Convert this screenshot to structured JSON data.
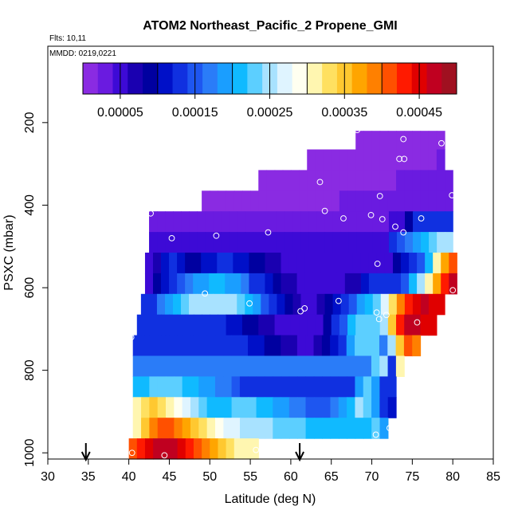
{
  "chart_data": {
    "type": "heatmap",
    "title": "ATOM2 Northeast_Pacific_2 Propene_GMI",
    "flights_note": "Flts: 10,11",
    "mmdd_note": "MMDD: 0219,0221",
    "xlabel": "Latitude (deg N)",
    "ylabel": "PSXC (mbar)",
    "xlim": [
      30,
      85
    ],
    "ylim": [
      1015,
      15
    ],
    "x_ticks": [
      30,
      35,
      40,
      45,
      50,
      55,
      60,
      65,
      70,
      75,
      80,
      85
    ],
    "y_ticks": [
      200,
      400,
      600,
      800,
      1000
    ],
    "colorbar": {
      "range": [
        0,
        0.0005
      ],
      "tick_values": [
        5e-05,
        0.00015,
        0.00025,
        0.00035,
        0.00045
      ],
      "tick_labels": [
        "0.00005",
        "0.00015",
        "0.00025",
        "0.00035",
        "0.00045"
      ],
      "colors": [
        "#8a2be2",
        "#6a1be0",
        "#3d0ad6",
        "#1a00b0",
        "#0000a0",
        "#0010c8",
        "#1030e0",
        "#1e56f0",
        "#2a7cf8",
        "#1a9eff",
        "#10baff",
        "#5ccfff",
        "#a8e2ff",
        "#dff4ff",
        "#fffff0",
        "#fff6b0",
        "#ffe060",
        "#ffc830",
        "#ffa500",
        "#ff8000",
        "#ff5000",
        "#ff1a00",
        "#e00000",
        "#c00020",
        "#a01020"
      ]
    },
    "arrows_lat": [
      34.7,
      61.1
    ],
    "bands": [
      {
        "p_top": 220,
        "p_bot": 265,
        "lat_start": 68,
        "lat_end": 79,
        "values": [
          1e-05,
          1e-05,
          1e-05,
          1e-05,
          1e-05,
          1e-05,
          1e-05,
          1e-05,
          1e-05,
          1e-05,
          1e-05
        ]
      },
      {
        "p_top": 265,
        "p_bot": 315,
        "lat_start": 62,
        "lat_end": 79,
        "values": [
          1e-05,
          1e-05,
          1e-05,
          1e-05,
          1e-05,
          1e-05,
          1e-05,
          1e-05,
          1e-05,
          1e-05,
          1e-05,
          1e-05,
          1e-05,
          1e-05,
          1.5e-05,
          1.5e-05,
          2e-05
        ]
      },
      {
        "p_top": 315,
        "p_bot": 365,
        "lat_start": 56,
        "lat_end": 80,
        "values": [
          1e-05,
          1e-05,
          1e-05,
          1e-05,
          1e-05,
          1e-05,
          1e-05,
          1e-05,
          1e-05,
          1e-05,
          1e-05,
          1e-05,
          1e-05,
          1e-05,
          1e-05,
          1.5e-05,
          1.5e-05,
          2e-05,
          2e-05,
          2e-05,
          2.5e-05,
          2.5e-05,
          3e-05,
          3e-05
        ]
      },
      {
        "p_top": 365,
        "p_bot": 415,
        "lat_start": 49,
        "lat_end": 80,
        "values": [
          1e-05,
          1e-05,
          1e-05,
          1e-05,
          1e-05,
          1e-05,
          1e-05,
          1e-05,
          1e-05,
          1e-05,
          1e-05,
          1e-05,
          1e-05,
          1e-05,
          1.5e-05,
          1.5e-05,
          1.5e-05,
          2e-05,
          2e-05,
          2e-05,
          2e-05,
          2.5e-05,
          2.5e-05,
          3e-05,
          3e-05,
          3e-05,
          3e-05,
          2.5e-05,
          2e-05,
          3e-05,
          3e-05
        ]
      },
      {
        "p_top": 415,
        "p_bot": 465,
        "lat_start": 42.5,
        "lat_end": 80,
        "values": [
          2e-05,
          2e-05,
          2e-05,
          2e-05,
          2e-05,
          2e-05,
          2e-05,
          2e-05,
          2e-05,
          2e-05,
          2.5e-05,
          2.5e-05,
          2.5e-05,
          2.5e-05,
          2.5e-05,
          2.5e-05,
          2.5e-05,
          3e-05,
          3e-05,
          3e-05,
          3e-05,
          3e-05,
          3e-05,
          3e-05,
          3e-05,
          3e-05,
          3e-05,
          3e-05,
          3e-05,
          3e-05,
          4e-05,
          5e-05,
          8e-05,
          0.00012,
          0.00012,
          0.00012,
          0.00012,
          0.00012
        ]
      },
      {
        "p_top": 465,
        "p_bot": 515,
        "lat_start": 42.5,
        "lat_end": 80,
        "values": [
          4e-05,
          4e-05,
          4e-05,
          4e-05,
          4e-05,
          4e-05,
          4e-05,
          4e-05,
          4e-05,
          4e-05,
          4e-05,
          4e-05,
          4e-05,
          4e-05,
          4e-05,
          4e-05,
          4e-05,
          4e-05,
          4e-05,
          4e-05,
          4e-05,
          4e-05,
          4e-05,
          4e-05,
          4e-05,
          4e-05,
          4e-05,
          4e-05,
          4e-05,
          4e-05,
          0.00012,
          0.00015,
          0.00016,
          0.00018,
          0.0002,
          0.00022,
          0.00024,
          0.00026
        ]
      },
      {
        "p_top": 515,
        "p_bot": 565,
        "lat_start": 42,
        "lat_end": 80.5,
        "values": [
          5e-05,
          7e-05,
          0.0001,
          0.00012,
          0.0001,
          8e-05,
          9e-05,
          0.0001,
          0.00011,
          0.00012,
          0.00012,
          0.00011,
          0.0001,
          9e-05,
          8e-05,
          7e-05,
          6e-05,
          5e-05,
          4e-05,
          4e-05,
          4e-05,
          4e-05,
          4e-05,
          4e-05,
          4e-05,
          4e-05,
          4e-05,
          4e-05,
          4e-05,
          4e-05,
          5e-05,
          8e-05,
          0.0001,
          0.00012,
          0.00015,
          0.0002,
          0.0003,
          0.00036,
          0.0004
        ]
      },
      {
        "p_top": 565,
        "p_bot": 615,
        "lat_start": 42,
        "lat_end": 80.5,
        "values": [
          5e-05,
          8e-05,
          0.00011,
          0.00013,
          0.00015,
          0.00016,
          0.00018,
          0.00019,
          0.0002,
          0.0002,
          0.00019,
          0.00018,
          0.00016,
          0.00014,
          0.00012,
          0.0001,
          8e-05,
          7e-05,
          6e-05,
          5e-05,
          5e-05,
          4e-05,
          4e-05,
          4e-05,
          4e-05,
          6e-05,
          7e-05,
          0.0001,
          0.00012,
          0.00012,
          0.00012,
          0.00012,
          0.00015,
          0.0002,
          0.00025,
          0.0003,
          0.00036,
          0.00042,
          0.00046
        ]
      },
      {
        "p_top": 615,
        "p_bot": 665,
        "lat_start": 41.5,
        "lat_end": 79,
        "values": [
          0.00012,
          0.00014,
          0.00016,
          0.00018,
          0.0002,
          0.00022,
          0.00024,
          0.00025,
          0.00026,
          0.00026,
          0.00025,
          0.00024,
          0.00022,
          0.0002,
          0.00018,
          0.00015,
          0.00012,
          0.0001,
          8e-05,
          6e-05,
          5e-05,
          5e-05,
          6e-05,
          8e-05,
          0.0001,
          0.00013,
          0.00015,
          0.00018,
          0.0002,
          0.00022,
          0.00028,
          0.00033,
          0.00038,
          0.00042,
          0.00045,
          0.00046,
          0.00045,
          0.00044
        ]
      },
      {
        "p_top": 665,
        "p_bot": 715,
        "lat_start": 41,
        "lat_end": 78,
        "values": [
          0.00012,
          0.00012,
          0.00012,
          0.00012,
          0.00012,
          0.00012,
          0.00012,
          0.00012,
          0.00012,
          0.00012,
          0.00012,
          0.00011,
          0.0001,
          9e-05,
          8e-05,
          7e-05,
          6e-05,
          5e-05,
          4e-05,
          4e-05,
          4e-05,
          4e-05,
          5e-05,
          8e-05,
          0.00012,
          0.00015,
          0.0002,
          0.00023,
          0.00023,
          0.00022,
          0.00026,
          0.00035,
          0.00042,
          0.00046,
          0.00046,
          0.00044,
          0.00045
        ]
      },
      {
        "p_top": 715,
        "p_bot": 765,
        "lat_start": 40.5,
        "lat_end": 76,
        "values": [
          0.00013,
          0.00013,
          0.00013,
          0.00013,
          0.00013,
          0.00013,
          0.00013,
          0.00013,
          0.00013,
          0.00013,
          0.00013,
          0.00013,
          0.00013,
          0.00012,
          0.00011,
          0.0001,
          9e-05,
          8e-05,
          7e-05,
          6e-05,
          5e-05,
          4e-05,
          6e-05,
          8e-05,
          0.00011,
          0.00014,
          0.00018,
          0.00022,
          0.00023,
          0.00023,
          0.00016,
          0.00025,
          0.00035,
          0.0004,
          0.00038
        ]
      },
      {
        "p_top": 765,
        "p_bot": 815,
        "lat_start": 40.5,
        "lat_end": 74,
        "values": [
          0.00016,
          0.00016,
          0.00016,
          0.00016,
          0.00016,
          0.00016,
          0.00016,
          0.00016,
          0.00016,
          0.00016,
          0.00016,
          0.00016,
          0.00016,
          0.00016,
          0.00016,
          0.00016,
          0.00016,
          0.00016,
          0.00016,
          0.00016,
          0.00016,
          0.00016,
          0.00016,
          0.00016,
          0.00016,
          0.00016,
          0.00016,
          0.00016,
          0.00016,
          0.00022,
          0.00025,
          0.00012,
          0.0003
        ]
      },
      {
        "p_top": 815,
        "p_bot": 865,
        "lat_start": 40.5,
        "lat_end": 73,
        "values": [
          0.0002,
          0.00021,
          0.00022,
          0.00023,
          0.00023,
          0.00022,
          0.00021,
          0.0002,
          0.00019,
          0.00018,
          0.00017,
          0.00016,
          0.00015,
          0.00014,
          0.00013,
          0.00012,
          0.00012,
          0.00012,
          0.00012,
          0.00012,
          0.00012,
          0.00012,
          0.00012,
          0.00012,
          0.00012,
          0.00012,
          0.00013,
          0.00018,
          0.00023,
          0.00018,
          0.00012,
          0.00012
        ]
      },
      {
        "p_top": 865,
        "p_bot": 915,
        "lat_start": 40.5,
        "lat_end": 73,
        "values": [
          0.00031,
          0.00032,
          0.00034,
          0.00033,
          0.00031,
          0.00029,
          0.00027,
          0.00025,
          0.00023,
          0.00021,
          0.0002,
          0.00021,
          0.00022,
          0.00023,
          0.00022,
          0.00021,
          0.0002,
          0.00019,
          0.00018,
          0.00017,
          0.00016,
          0.00015,
          0.00015,
          0.00015,
          0.00016,
          0.00018,
          0.00021,
          0.00025,
          0.00023,
          0.00018,
          0.00012,
          0.0001
        ]
      },
      {
        "p_top": 915,
        "p_bot": 965,
        "lat_start": 40.5,
        "lat_end": 72,
        "values": [
          0.0003,
          0.00034,
          0.00038,
          0.0004,
          0.0004,
          0.00038,
          0.00036,
          0.00034,
          0.00032,
          0.0003,
          0.00029,
          0.00028,
          0.00027,
          0.00026,
          0.00026,
          0.00025,
          0.00024,
          0.00023,
          0.00022,
          0.00022,
          0.00022,
          0.00021,
          0.00021,
          0.00021,
          0.0002,
          0.0002,
          0.0002,
          0.0002,
          0.00021,
          0.00022,
          0.00018
        ]
      },
      {
        "p_top": 965,
        "p_bot": 1015,
        "lat_start": 40,
        "lat_end": 56,
        "values": [
          0.0004,
          0.00042,
          0.00044,
          0.00046,
          0.00047,
          0.00046,
          0.00044,
          0.00042,
          0.0004,
          0.00038,
          0.00036,
          0.00034,
          0.00032,
          0.00031,
          0.0003,
          0.0003
        ]
      }
    ],
    "obs_points": [
      [
        68.2,
        218
      ],
      [
        73.9,
        240
      ],
      [
        78.6,
        250
      ],
      [
        73.4,
        288
      ],
      [
        74.0,
        288
      ],
      [
        63.6,
        344
      ],
      [
        79.9,
        376
      ],
      [
        71.0,
        378
      ],
      [
        42.7,
        420
      ],
      [
        64.2,
        414
      ],
      [
        69.9,
        424
      ],
      [
        66.5,
        432
      ],
      [
        76.1,
        432
      ],
      [
        71.3,
        434
      ],
      [
        72.9,
        452
      ],
      [
        73.9,
        466
      ],
      [
        57.2,
        466
      ],
      [
        45.3,
        480
      ],
      [
        50.8,
        474
      ],
      [
        70.7,
        542
      ],
      [
        49.4,
        614
      ],
      [
        80.0,
        606
      ],
      [
        54.9,
        638
      ],
      [
        65.9,
        632
      ],
      [
        61.7,
        650
      ],
      [
        61.2,
        657
      ],
      [
        70.6,
        660
      ],
      [
        71.8,
        666
      ],
      [
        70.9,
        676
      ],
      [
        75.6,
        684
      ],
      [
        40.3,
        720
      ],
      [
        72.2,
        940
      ],
      [
        70.5,
        956
      ],
      [
        40.4,
        1000
      ],
      [
        44.4,
        1006
      ],
      [
        55.7,
        993
      ]
    ]
  }
}
